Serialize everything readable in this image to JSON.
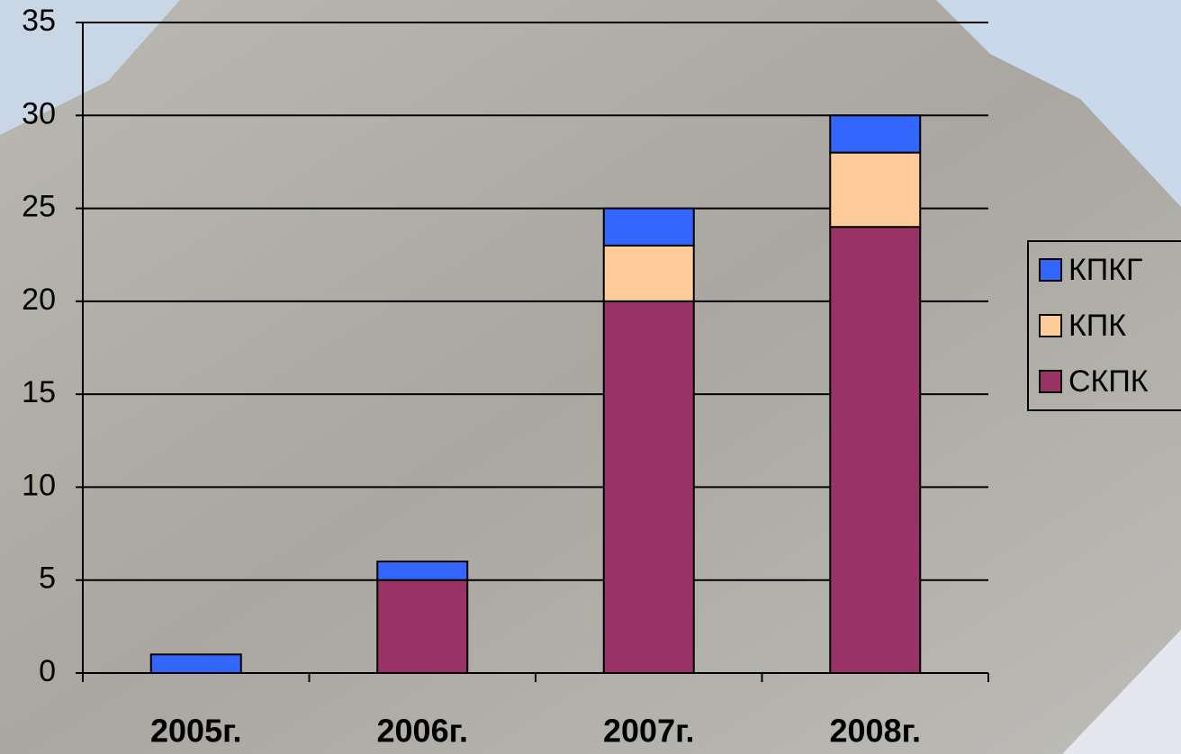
{
  "chart_data": {
    "type": "stacked_bar",
    "categories": [
      "2005г.",
      "2006г.",
      "2007г.",
      "2008г."
    ],
    "series": [
      {
        "name": "СКПК",
        "color": "#993366",
        "values": [
          0,
          5,
          20,
          24
        ]
      },
      {
        "name": "КПК",
        "color": "#FFCC99",
        "values": [
          0,
          0,
          3,
          4
        ]
      },
      {
        "name": "КПКГ",
        "color": "#3366FF",
        "values": [
          1,
          1,
          2,
          2
        ]
      }
    ],
    "ylim": [
      0,
      35
    ],
    "yticks": [
      0,
      5,
      10,
      15,
      20,
      25,
      30,
      35
    ],
    "grid": true,
    "legend": "right"
  }
}
